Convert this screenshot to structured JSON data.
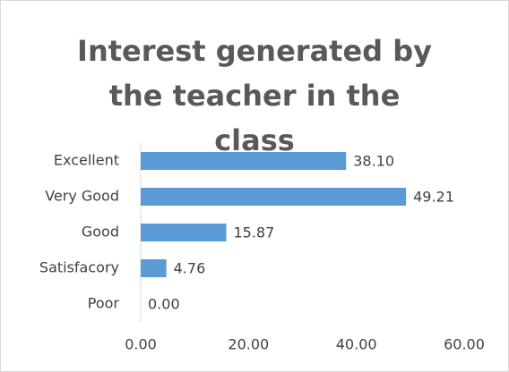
{
  "chart_data": {
    "type": "bar",
    "orientation": "horizontal",
    "title": "Interest generated by the teacher in the class",
    "categories": [
      "Excellent",
      "Very Good",
      "Good",
      "Satisfacory",
      "Poor"
    ],
    "values": [
      38.1,
      49.21,
      15.87,
      4.76,
      0
    ],
    "value_labels": [
      "38.10",
      "49.21",
      "15.87",
      "4.76",
      "0.00"
    ],
    "color": "#5b9bd5",
    "xlim": [
      0,
      60
    ],
    "xticks": [
      {
        "value": 0,
        "label": "0.00"
      },
      {
        "value": 20,
        "label": "20.00"
      },
      {
        "value": 40,
        "label": "40.00"
      },
      {
        "value": 60,
        "label": "60.00"
      }
    ],
    "grid": false
  }
}
